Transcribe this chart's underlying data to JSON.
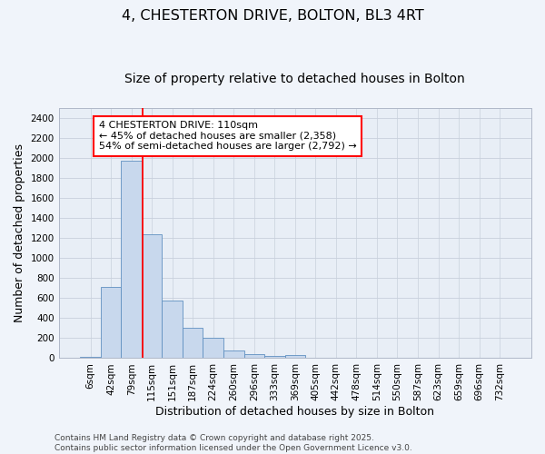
{
  "title_line1": "4, CHESTERTON DRIVE, BOLTON, BL3 4RT",
  "title_line2": "Size of property relative to detached houses in Bolton",
  "xlabel": "Distribution of detached houses by size in Bolton",
  "ylabel": "Number of detached properties",
  "bar_categories": [
    "6sqm",
    "42sqm",
    "79sqm",
    "115sqm",
    "151sqm",
    "187sqm",
    "224sqm",
    "260sqm",
    "296sqm",
    "333sqm",
    "369sqm",
    "405sqm",
    "442sqm",
    "478sqm",
    "514sqm",
    "550sqm",
    "587sqm",
    "623sqm",
    "659sqm",
    "696sqm",
    "732sqm"
  ],
  "bar_values": [
    15,
    715,
    1970,
    1240,
    575,
    305,
    200,
    80,
    40,
    25,
    30,
    5,
    5,
    2,
    2,
    1,
    0,
    0,
    0,
    0,
    0
  ],
  "bar_color": "#c8d8ed",
  "bar_edge_color": "#6090c0",
  "grid_color": "#c8d0dc",
  "background_color": "#e8eef6",
  "fig_background": "#f0f4fa",
  "annotation_line1": "4 CHESTERTON DRIVE: 110sqm",
  "annotation_line2": "← 45% of detached houses are smaller (2,358)",
  "annotation_line3": "54% of semi-detached houses are larger (2,792) →",
  "red_line_x": 2.55,
  "ylim_max": 2500,
  "ytick_max": 2400,
  "ytick_step": 200,
  "footer_line1": "Contains HM Land Registry data © Crown copyright and database right 2025.",
  "footer_line2": "Contains public sector information licensed under the Open Government Licence v3.0.",
  "title_fontsize": 11.5,
  "subtitle_fontsize": 10,
  "axis_label_fontsize": 9,
  "tick_fontsize": 7.5,
  "annotation_fontsize": 8,
  "footer_fontsize": 6.5
}
